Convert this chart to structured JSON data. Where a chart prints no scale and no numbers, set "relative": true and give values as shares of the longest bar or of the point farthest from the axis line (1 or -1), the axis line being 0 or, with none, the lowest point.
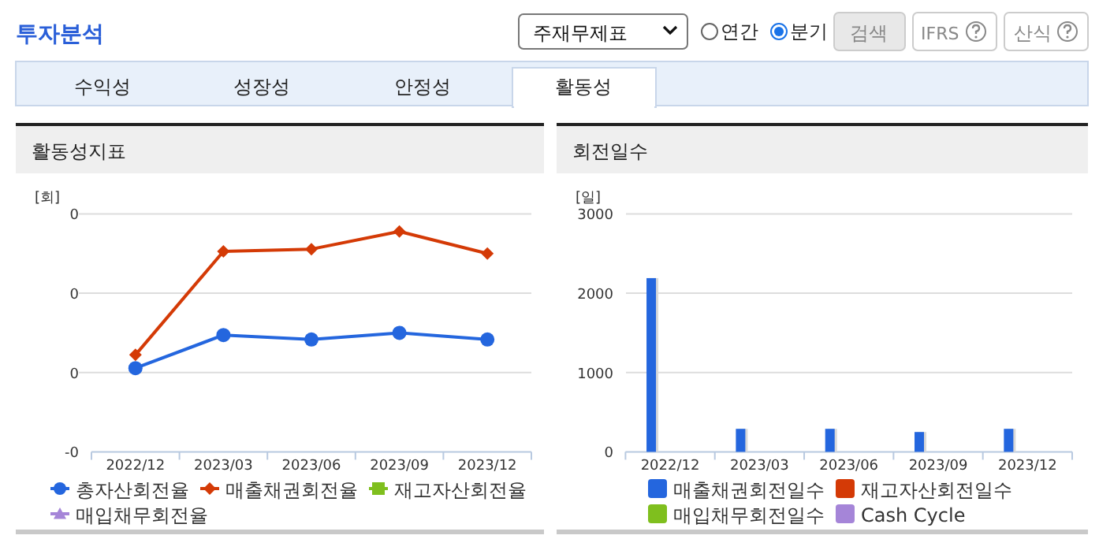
{
  "chart_data": [
    {
      "type": "other",
      "title": "투자분석",
      "annotations": [
        "주재무제표",
        "연간",
        "분기",
        "검색",
        "IFRS",
        "산식",
        "수익성",
        "성장성",
        "안정성",
        "활동성"
      ]
    },
    {
      "type": "line",
      "title": "활동성지표",
      "ylabel": "[회]",
      "categories": [
        "2022/12",
        "2023/03",
        "2023/06",
        "2023/09",
        "2023/12"
      ],
      "relative": true,
      "annotations": [
        "0",
        "0",
        "0",
        "-0"
      ],
      "ref_lines": [
        {
          "axis": "y",
          "value": 0.72,
          "color": "#dddddd"
        },
        {
          "axis": "y",
          "value": 0.36,
          "color": "#dddddd"
        }
      ],
      "legend": "bottom",
      "series": [
        {
          "name": "총자산회전율",
          "color": "#2466de",
          "marker": "circle",
          "values": [
            0.38,
            0.53,
            0.51,
            0.54,
            0.51
          ]
        },
        {
          "name": "매출채권회전율",
          "color": "#d43a06",
          "marker": "diamond",
          "values": [
            0.44,
            0.91,
            0.92,
            1,
            0.9
          ]
        },
        {
          "name": "재고자산회전율",
          "color": "#7fbf1e",
          "marker": "square",
          "values": [
            null,
            null,
            null,
            null,
            null
          ]
        },
        {
          "name": "매입채무회전율",
          "color": "#a585d8",
          "marker": "triangle",
          "values": [
            null,
            null,
            null,
            null,
            null
          ]
        }
      ]
    },
    {
      "type": "bar",
      "title": "회전일수",
      "ylabel": "[일]",
      "categories": [
        "2022/12",
        "2023/03",
        "2023/06",
        "2023/09",
        "2023/12"
      ],
      "ylim": [
        0,
        3000
      ],
      "yticks": [
        0,
        1000,
        2000,
        3000
      ],
      "grid": "y",
      "legend": "bottom",
      "series": [
        {
          "name": "매출채권회전일수",
          "color": "#2466de",
          "values": [
            2190,
            290,
            290,
            250,
            290
          ]
        },
        {
          "name": "재고자산회전일수",
          "color": "#d43a06",
          "values": [
            null,
            null,
            null,
            null,
            null
          ]
        },
        {
          "name": "매입채무회전일수",
          "color": "#7fbf1e",
          "values": [
            null,
            null,
            null,
            null,
            null
          ]
        },
        {
          "name": "Cash Cycle",
          "color": "#a585d8",
          "values": [
            null,
            null,
            null,
            null,
            null
          ]
        }
      ]
    }
  ]
}
